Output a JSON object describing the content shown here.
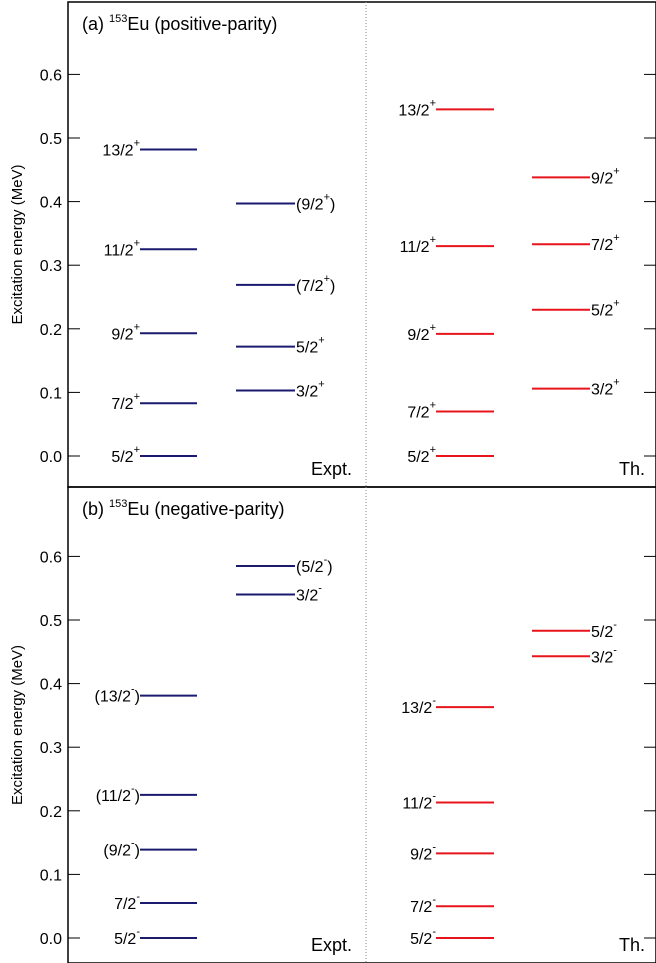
{
  "chart_data": [
    {
      "type": "level-scheme",
      "title_prefix": "(a) ",
      "nucleus_mass": "153",
      "nucleus_symbol": "Eu",
      "title_suffix": " (positive-parity)",
      "ylabel": "Excitation energy (MeV)",
      "ylim": [
        -0.045,
        0.69
      ],
      "yticks": [
        "0.0",
        "0.1",
        "0.2",
        "0.3",
        "0.4",
        "0.5",
        "0.6"
      ],
      "column_labels": [
        "Expt.",
        "Th."
      ],
      "colors": {
        "expt": "#1a1a6e",
        "th": "#e8141c"
      },
      "series": [
        {
          "name": "Expt.",
          "levels": [
            {
              "spin": "5/2",
              "parity": "+",
              "paren": false,
              "energy": 0.0,
              "col": "left"
            },
            {
              "spin": "7/2",
              "parity": "+",
              "paren": false,
              "energy": 0.083,
              "col": "left"
            },
            {
              "spin": "9/2",
              "parity": "+",
              "paren": false,
              "energy": 0.193,
              "col": "left"
            },
            {
              "spin": "11/2",
              "parity": "+",
              "paren": false,
              "energy": 0.325,
              "col": "left"
            },
            {
              "spin": "13/2",
              "parity": "+",
              "paren": false,
              "energy": 0.482,
              "col": "left"
            },
            {
              "spin": "3/2",
              "parity": "+",
              "paren": false,
              "energy": 0.103,
              "col": "right"
            },
            {
              "spin": "5/2",
              "parity": "+",
              "paren": false,
              "energy": 0.172,
              "col": "right"
            },
            {
              "spin": "7/2",
              "parity": "+",
              "paren": true,
              "energy": 0.269,
              "col": "right"
            },
            {
              "spin": "9/2",
              "parity": "+",
              "paren": true,
              "energy": 0.397,
              "col": "right"
            }
          ]
        },
        {
          "name": "Th.",
          "levels": [
            {
              "spin": "5/2",
              "parity": "+",
              "paren": false,
              "energy": 0.0,
              "col": "left"
            },
            {
              "spin": "7/2",
              "parity": "+",
              "paren": false,
              "energy": 0.07,
              "col": "left"
            },
            {
              "spin": "9/2",
              "parity": "+",
              "paren": false,
              "energy": 0.192,
              "col": "left"
            },
            {
              "spin": "11/2",
              "parity": "+",
              "paren": false,
              "energy": 0.33,
              "col": "left"
            },
            {
              "spin": "13/2",
              "parity": "+",
              "paren": false,
              "energy": 0.545,
              "col": "left"
            },
            {
              "spin": "3/2",
              "parity": "+",
              "paren": false,
              "energy": 0.106,
              "col": "right"
            },
            {
              "spin": "5/2",
              "parity": "+",
              "paren": false,
              "energy": 0.23,
              "col": "right"
            },
            {
              "spin": "7/2",
              "parity": "+",
              "paren": false,
              "energy": 0.333,
              "col": "right"
            },
            {
              "spin": "9/2",
              "parity": "+",
              "paren": false,
              "energy": 0.438,
              "col": "right"
            }
          ]
        }
      ]
    },
    {
      "type": "level-scheme",
      "title_prefix": "(b) ",
      "nucleus_mass": "153",
      "nucleus_symbol": "Eu",
      "title_suffix": " (negative-parity)",
      "ylabel": "Excitation energy (MeV)",
      "ylim": [
        -0.045,
        0.69
      ],
      "yticks": [
        "0.0",
        "0.1",
        "0.2",
        "0.3",
        "0.4",
        "0.5",
        "0.6"
      ],
      "column_labels": [
        "Expt.",
        "Th."
      ],
      "colors": {
        "expt": "#1a1a6e",
        "th": "#e8141c"
      },
      "series": [
        {
          "name": "Expt.",
          "levels": [
            {
              "spin": "5/2",
              "parity": "-",
              "paren": false,
              "energy": 0.0,
              "col": "left"
            },
            {
              "spin": "7/2",
              "parity": "-",
              "paren": false,
              "energy": 0.055,
              "col": "left"
            },
            {
              "spin": "9/2",
              "parity": "-",
              "paren": true,
              "energy": 0.139,
              "col": "left"
            },
            {
              "spin": "11/2",
              "parity": "-",
              "paren": true,
              "energy": 0.225,
              "col": "left"
            },
            {
              "spin": "13/2",
              "parity": "-",
              "paren": true,
              "energy": 0.381,
              "col": "left"
            },
            {
              "spin": "3/2",
              "parity": "-",
              "paren": false,
              "energy": 0.54,
              "col": "right"
            },
            {
              "spin": "5/2",
              "parity": "-",
              "paren": true,
              "energy": 0.585,
              "col": "right"
            }
          ]
        },
        {
          "name": "Th.",
          "levels": [
            {
              "spin": "5/2",
              "parity": "-",
              "paren": false,
              "energy": 0.0,
              "col": "left"
            },
            {
              "spin": "7/2",
              "parity": "-",
              "paren": false,
              "energy": 0.05,
              "col": "left"
            },
            {
              "spin": "9/2",
              "parity": "-",
              "paren": false,
              "energy": 0.133,
              "col": "left"
            },
            {
              "spin": "11/2",
              "parity": "-",
              "paren": false,
              "energy": 0.213,
              "col": "left"
            },
            {
              "spin": "13/2",
              "parity": "-",
              "paren": false,
              "energy": 0.363,
              "col": "left"
            },
            {
              "spin": "3/2",
              "parity": "-",
              "paren": false,
              "energy": 0.443,
              "col": "right"
            },
            {
              "spin": "5/2",
              "parity": "-",
              "paren": false,
              "energy": 0.483,
              "col": "right"
            }
          ]
        }
      ]
    }
  ]
}
